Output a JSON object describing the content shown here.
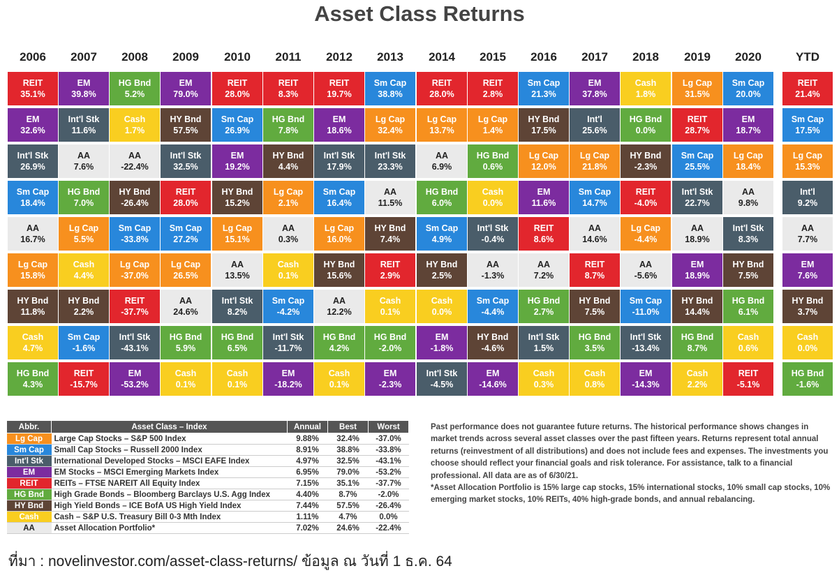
{
  "title": "Asset Class Returns",
  "colors": {
    "REIT": "#e2262d",
    "EM": "#7c2c9f",
    "HG Bnd": "#61ab3f",
    "Int'l Stk": "#4a5d6a",
    "Int'l": "#4a5d6a",
    "Sm Cap": "#2887db",
    "Lg Cap": "#f7901e",
    "HY Bnd": "#5e4436",
    "Cash": "#f9ce20",
    "AA": "#eaeaea"
  },
  "chart_data": {
    "type": "table",
    "years": [
      "2006",
      "2007",
      "2008",
      "2009",
      "2010",
      "2011",
      "2012",
      "2013",
      "2014",
      "2015",
      "2016",
      "2017",
      "2018",
      "2019",
      "2020",
      "YTD"
    ],
    "columns": [
      [
        [
          "REIT",
          "35.1%"
        ],
        [
          "EM",
          "32.6%"
        ],
        [
          "Int'l Stk",
          "26.9%"
        ],
        [
          "Sm Cap",
          "18.4%"
        ],
        [
          "AA",
          "16.7%"
        ],
        [
          "Lg Cap",
          "15.8%"
        ],
        [
          "HY Bnd",
          "11.8%"
        ],
        [
          "Cash",
          "4.7%"
        ],
        [
          "HG Bnd",
          "4.3%"
        ]
      ],
      [
        [
          "EM",
          "39.8%"
        ],
        [
          "Int'l Stk",
          "11.6%"
        ],
        [
          "AA",
          "7.6%"
        ],
        [
          "HG Bnd",
          "7.0%"
        ],
        [
          "Lg Cap",
          "5.5%"
        ],
        [
          "Cash",
          "4.4%"
        ],
        [
          "HY Bnd",
          "2.2%"
        ],
        [
          "Sm Cap",
          "-1.6%"
        ],
        [
          "REIT",
          "-15.7%"
        ]
      ],
      [
        [
          "HG Bnd",
          "5.2%"
        ],
        [
          "Cash",
          "1.7%"
        ],
        [
          "AA",
          "-22.4%"
        ],
        [
          "HY Bnd",
          "-26.4%"
        ],
        [
          "Sm Cap",
          "-33.8%"
        ],
        [
          "Lg Cap",
          "-37.0%"
        ],
        [
          "REIT",
          "-37.7%"
        ],
        [
          "Int'l Stk",
          "-43.1%"
        ],
        [
          "EM",
          "-53.2%"
        ]
      ],
      [
        [
          "EM",
          "79.0%"
        ],
        [
          "HY Bnd",
          "57.5%"
        ],
        [
          "Int'l Stk",
          "32.5%"
        ],
        [
          "REIT",
          "28.0%"
        ],
        [
          "Sm Cap",
          "27.2%"
        ],
        [
          "Lg Cap",
          "26.5%"
        ],
        [
          "AA",
          "24.6%"
        ],
        [
          "HG Bnd",
          "5.9%"
        ],
        [
          "Cash",
          "0.1%"
        ]
      ],
      [
        [
          "REIT",
          "28.0%"
        ],
        [
          "Sm Cap",
          "26.9%"
        ],
        [
          "EM",
          "19.2%"
        ],
        [
          "HY Bnd",
          "15.2%"
        ],
        [
          "Lg Cap",
          "15.1%"
        ],
        [
          "AA",
          "13.5%"
        ],
        [
          "Int'l Stk",
          "8.2%"
        ],
        [
          "HG Bnd",
          "6.5%"
        ],
        [
          "Cash",
          "0.1%"
        ]
      ],
      [
        [
          "REIT",
          "8.3%"
        ],
        [
          "HG Bnd",
          "7.8%"
        ],
        [
          "HY Bnd",
          "4.4%"
        ],
        [
          "Lg Cap",
          "2.1%"
        ],
        [
          "AA",
          "0.3%"
        ],
        [
          "Cash",
          "0.1%"
        ],
        [
          "Sm Cap",
          "-4.2%"
        ],
        [
          "Int'l Stk",
          "-11.7%"
        ],
        [
          "EM",
          "-18.2%"
        ]
      ],
      [
        [
          "REIT",
          "19.7%"
        ],
        [
          "EM",
          "18.6%"
        ],
        [
          "Int'l Stk",
          "17.9%"
        ],
        [
          "Sm Cap",
          "16.4%"
        ],
        [
          "Lg Cap",
          "16.0%"
        ],
        [
          "HY Bnd",
          "15.6%"
        ],
        [
          "AA",
          "12.2%"
        ],
        [
          "HG Bnd",
          "4.2%"
        ],
        [
          "Cash",
          "0.1%"
        ]
      ],
      [
        [
          "Sm Cap",
          "38.8%"
        ],
        [
          "Lg Cap",
          "32.4%"
        ],
        [
          "Int'l Stk",
          "23.3%"
        ],
        [
          "AA",
          "11.5%"
        ],
        [
          "HY Bnd",
          "7.4%"
        ],
        [
          "REIT",
          "2.9%"
        ],
        [
          "Cash",
          "0.1%"
        ],
        [
          "HG Bnd",
          "-2.0%"
        ],
        [
          "EM",
          "-2.3%"
        ]
      ],
      [
        [
          "REIT",
          "28.0%"
        ],
        [
          "Lg Cap",
          "13.7%"
        ],
        [
          "AA",
          "6.9%"
        ],
        [
          "HG Bnd",
          "6.0%"
        ],
        [
          "Sm Cap",
          "4.9%"
        ],
        [
          "HY Bnd",
          "2.5%"
        ],
        [
          "Cash",
          "0.0%"
        ],
        [
          "EM",
          "-1.8%"
        ],
        [
          "Int'l Stk",
          "-4.5%"
        ]
      ],
      [
        [
          "REIT",
          "2.8%"
        ],
        [
          "Lg Cap",
          "1.4%"
        ],
        [
          "HG Bnd",
          "0.6%"
        ],
        [
          "Cash",
          "0.0%"
        ],
        [
          "Int'l Stk",
          "-0.4%"
        ],
        [
          "AA",
          "-1.3%"
        ],
        [
          "Sm Cap",
          "-4.4%"
        ],
        [
          "HY Bnd",
          "-4.6%"
        ],
        [
          "EM",
          "-14.6%"
        ]
      ],
      [
        [
          "Sm Cap",
          "21.3%"
        ],
        [
          "HY Bnd",
          "17.5%"
        ],
        [
          "Lg Cap",
          "12.0%"
        ],
        [
          "EM",
          "11.6%"
        ],
        [
          "REIT",
          "8.6%"
        ],
        [
          "AA",
          "7.2%"
        ],
        [
          "HG Bnd",
          "2.7%"
        ],
        [
          "Int'l Stk",
          "1.5%"
        ],
        [
          "Cash",
          "0.3%"
        ]
      ],
      [
        [
          "EM",
          "37.8%"
        ],
        [
          "Int'l",
          "25.6%"
        ],
        [
          "Lg Cap",
          "21.8%"
        ],
        [
          "Sm Cap",
          "14.7%"
        ],
        [
          "AA",
          "14.6%"
        ],
        [
          "REIT",
          "8.7%"
        ],
        [
          "HY Bnd",
          "7.5%"
        ],
        [
          "HG Bnd",
          "3.5%"
        ],
        [
          "Cash",
          "0.8%"
        ]
      ],
      [
        [
          "Cash",
          "1.8%"
        ],
        [
          "HG Bnd",
          "0.0%"
        ],
        [
          "HY Bnd",
          "-2.3%"
        ],
        [
          "REIT",
          "-4.0%"
        ],
        [
          "Lg Cap",
          "-4.4%"
        ],
        [
          "AA",
          "-5.6%"
        ],
        [
          "Sm Cap",
          "-11.0%"
        ],
        [
          "Int'l Stk",
          "-13.4%"
        ],
        [
          "EM",
          "-14.3%"
        ]
      ],
      [
        [
          "Lg Cap",
          "31.5%"
        ],
        [
          "REIT",
          "28.7%"
        ],
        [
          "Sm Cap",
          "25.5%"
        ],
        [
          "Int'l Stk",
          "22.7%"
        ],
        [
          "AA",
          "18.9%"
        ],
        [
          "EM",
          "18.9%"
        ],
        [
          "HY Bnd",
          "14.4%"
        ],
        [
          "HG Bnd",
          "8.7%"
        ],
        [
          "Cash",
          "2.2%"
        ]
      ],
      [
        [
          "Sm Cap",
          "20.0%"
        ],
        [
          "EM",
          "18.7%"
        ],
        [
          "Lg Cap",
          "18.4%"
        ],
        [
          "AA",
          "9.8%"
        ],
        [
          "Int'l Stk",
          "8.3%"
        ],
        [
          "HY Bnd",
          "7.5%"
        ],
        [
          "HG Bnd",
          "6.1%"
        ],
        [
          "Cash",
          "0.6%"
        ],
        [
          "REIT",
          "-5.1%"
        ]
      ],
      [
        [
          "REIT",
          "21.4%"
        ],
        [
          "Sm Cap",
          "17.5%"
        ],
        [
          "Lg Cap",
          "15.3%"
        ],
        [
          "Int'l",
          "9.2%"
        ],
        [
          "AA",
          "7.7%"
        ],
        [
          "EM",
          "7.6%"
        ],
        [
          "HY Bnd",
          "3.7%"
        ],
        [
          "Cash",
          "0.0%"
        ],
        [
          "HG Bnd",
          "-1.6%"
        ]
      ]
    ]
  },
  "legend": {
    "headers": [
      "Abbr.",
      "Asset Class – Index",
      "Annual",
      "Best",
      "Worst"
    ],
    "rows": [
      {
        "abbr": "Lg Cap",
        "name": "Large Cap Stocks – S&P 500 Index",
        "annual": "9.88%",
        "best": "32.4%",
        "worst": "-37.0%"
      },
      {
        "abbr": "Sm Cap",
        "name": "Small Cap Stocks – Russell 2000 Index",
        "annual": "8.91%",
        "best": "38.8%",
        "worst": "-33.8%"
      },
      {
        "abbr": "Int'l Stk",
        "name": "International Developed Stocks – MSCI EAFE Index",
        "annual": "4.97%",
        "best": "32.5%",
        "worst": "-43.1%"
      },
      {
        "abbr": "EM",
        "name": "EM Stocks – MSCI Emerging Markets Index",
        "annual": "6.95%",
        "best": "79.0%",
        "worst": "-53.2%"
      },
      {
        "abbr": "REIT",
        "name": "REITs – FTSE NAREIT All Equity Index",
        "annual": "7.15%",
        "best": "35.1%",
        "worst": "-37.7%"
      },
      {
        "abbr": "HG Bnd",
        "name": "High Grade Bonds – Bloomberg Barclays U.S. Agg Index",
        "annual": "4.40%",
        "best": "8.7%",
        "worst": "-2.0%"
      },
      {
        "abbr": "HY Bnd",
        "name": "High Yield Bonds – ICE BofA US High Yield Index",
        "annual": "7.44%",
        "best": "57.5%",
        "worst": "-26.4%"
      },
      {
        "abbr": "Cash",
        "name": "Cash – S&P U.S. Treasury Bill 0-3 Mth Index",
        "annual": "1.11%",
        "best": "4.7%",
        "worst": "0.0%"
      },
      {
        "abbr": "AA",
        "name": "Asset Allocation Portfolio*",
        "annual": "7.02%",
        "best": "24.6%",
        "worst": "-22.4%"
      }
    ]
  },
  "notes": {
    "p1": "Past performance does not guarantee future returns. The historical performance shows changes in market trends across several asset classes over the past fifteen years. Returns represent total annual returns (reinvestment of all distributions) and does not include fees and expenses. The investments you choose should reflect your financial goals and risk tolerance. For assistance, talk to a financial professional. All data are as of 6/30/21.",
    "p2": "*Asset Allocation Portfolio is 15% large cap stocks, 15% international stocks, 10% small cap stocks, 10% emerging market stocks, 10% REITs, 40% high-grade bonds, and annual rebalancing."
  },
  "source": "ที่มา : novelinvestor.com/asset-class-returns/ ข้อมูล ณ วันที่ 1 ธ.ค. 64"
}
